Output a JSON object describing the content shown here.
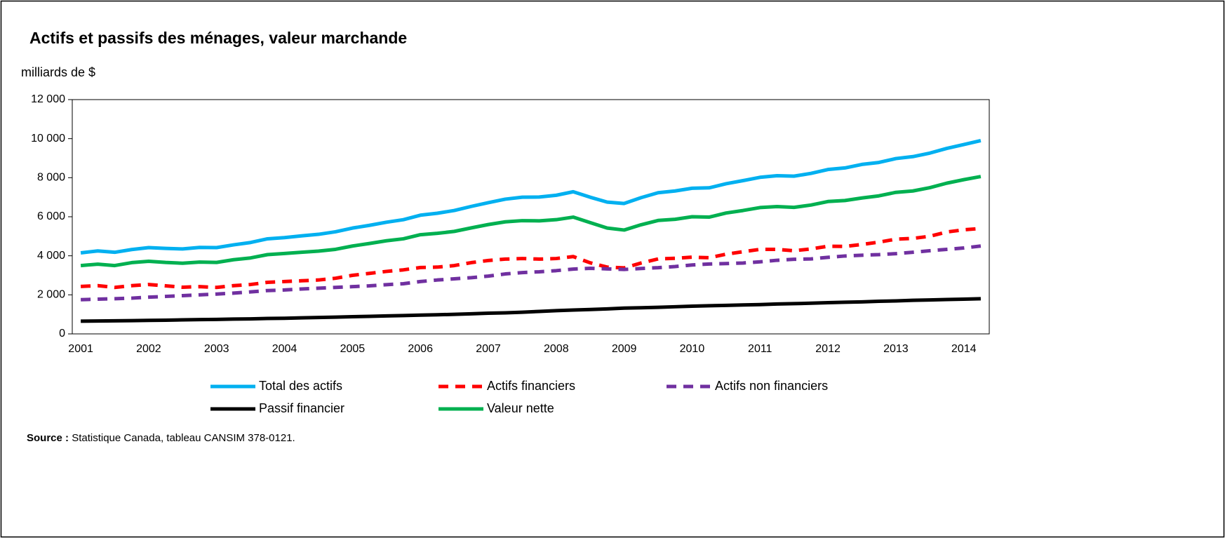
{
  "chart_data": {
    "type": "line",
    "title": "Actifs et passifs des ménages, valeur marchande",
    "y_label": "milliards de $",
    "source_label": "Source :",
    "source": "Statistique Canada, tableau CANSIM 378-0121.",
    "categories": [
      "2001",
      null,
      null,
      null,
      "2002",
      null,
      null,
      null,
      "2003",
      null,
      null,
      null,
      "2004",
      null,
      null,
      null,
      "2005",
      null,
      null,
      null,
      "2006",
      null,
      null,
      null,
      "2007",
      null,
      null,
      null,
      "2008",
      null,
      null,
      null,
      "2009",
      null,
      null,
      null,
      "2010",
      null,
      null,
      null,
      "2011",
      null,
      null,
      null,
      "2012",
      null,
      null,
      null,
      "2013",
      null,
      null,
      null,
      "2014",
      null
    ],
    "ylim": [
      0,
      12000
    ],
    "yticks": [
      0,
      {
        "value": 2000,
        "label": "2 000"
      },
      {
        "value": 4000,
        "label": "4 000"
      },
      {
        "value": 6000,
        "label": "6 000"
      },
      {
        "value": 8000,
        "label": "8 000"
      },
      {
        "value": 10000,
        "label": "10 000"
      },
      {
        "value": 12000,
        "label": "12 000"
      }
    ],
    "series": [
      {
        "name": "Total des actifs",
        "color": "#00b0f0",
        "line_style": "solid",
        "values": [
          4150,
          4250,
          4180,
          4320,
          4420,
          4380,
          4350,
          4430,
          4420,
          4560,
          4680,
          4870,
          4930,
          5020,
          5100,
          5230,
          5420,
          5560,
          5720,
          5850,
          6080,
          6180,
          6320,
          6530,
          6720,
          6900,
          7000,
          7010,
          7100,
          7280,
          7000,
          6750,
          6680,
          6980,
          7230,
          7320,
          7460,
          7480,
          7690,
          7850,
          8020,
          8100,
          8080,
          8220,
          8420,
          8500,
          8680,
          8780,
          8980,
          9080,
          9260,
          9500,
          9700,
          9900
        ]
      },
      {
        "name": "Actifs financiers",
        "color": "#ff0000",
        "line_style": "dashed",
        "values": [
          2430,
          2470,
          2380,
          2470,
          2530,
          2460,
          2390,
          2420,
          2380,
          2470,
          2530,
          2640,
          2680,
          2720,
          2760,
          2850,
          3000,
          3100,
          3200,
          3280,
          3400,
          3420,
          3500,
          3650,
          3760,
          3830,
          3860,
          3830,
          3860,
          3960,
          3640,
          3420,
          3380,
          3630,
          3840,
          3870,
          3930,
          3900,
          4080,
          4210,
          4330,
          4330,
          4260,
          4350,
          4490,
          4480,
          4580,
          4700,
          4850,
          4890,
          5000,
          5220,
          5330,
          5400
        ]
      },
      {
        "name": "Actifs non financiers",
        "color": "#7030a0",
        "line_style": "dashed",
        "values": [
          1750,
          1780,
          1800,
          1830,
          1880,
          1920,
          1960,
          2000,
          2040,
          2090,
          2150,
          2220,
          2250,
          2300,
          2340,
          2380,
          2420,
          2460,
          2520,
          2570,
          2680,
          2760,
          2820,
          2880,
          2960,
          3070,
          3140,
          3180,
          3240,
          3320,
          3360,
          3330,
          3300,
          3350,
          3390,
          3450,
          3530,
          3580,
          3600,
          3630,
          3690,
          3770,
          3820,
          3840,
          3920,
          3990,
          4030,
          4060,
          4110,
          4180,
          4260,
          4330,
          4400,
          4500
        ]
      },
      {
        "name": "Passif financier",
        "color": "#000000",
        "line_style": "solid",
        "values": [
          650,
          660,
          670,
          680,
          690,
          700,
          720,
          730,
          740,
          760,
          770,
          790,
          800,
          820,
          840,
          860,
          880,
          900,
          920,
          940,
          960,
          980,
          1000,
          1030,
          1060,
          1080,
          1110,
          1150,
          1190,
          1220,
          1250,
          1280,
          1320,
          1340,
          1360,
          1390,
          1420,
          1440,
          1460,
          1480,
          1500,
          1530,
          1550,
          1570,
          1600,
          1620,
          1640,
          1670,
          1690,
          1720,
          1740,
          1760,
          1780,
          1800
        ]
      },
      {
        "name": "Valeur nette",
        "color": "#00b050",
        "line_style": "solid",
        "values": [
          3500,
          3570,
          3500,
          3650,
          3720,
          3660,
          3620,
          3680,
          3660,
          3800,
          3890,
          4060,
          4120,
          4180,
          4240,
          4330,
          4500,
          4630,
          4770,
          4870,
          5080,
          5150,
          5250,
          5430,
          5600,
          5740,
          5800,
          5790,
          5850,
          5980,
          5700,
          5420,
          5320,
          5590,
          5810,
          5870,
          6000,
          5980,
          6190,
          6320,
          6470,
          6520,
          6480,
          6600,
          6780,
          6830,
          6960,
          7070,
          7250,
          7320,
          7490,
          7720,
          7900,
          8060
        ]
      }
    ]
  }
}
